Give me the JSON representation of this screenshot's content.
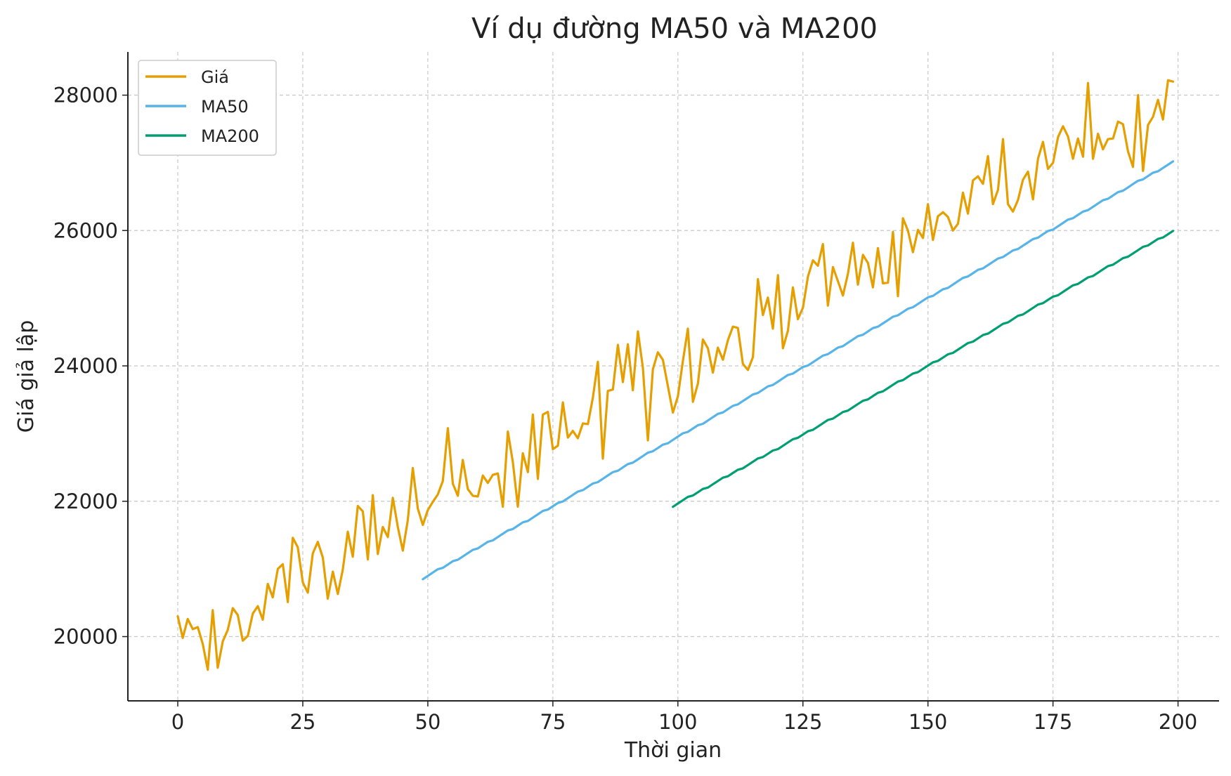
{
  "chart_data": {
    "type": "line",
    "title": "Ví dụ đường MA50 và MA200",
    "xlabel": "Thời gian",
    "ylabel": "Giá giả lập",
    "xlim": [
      -10,
      208
    ],
    "ylim": [
      19080,
      28680
    ],
    "xticks": [
      0,
      25,
      50,
      75,
      100,
      125,
      150,
      175,
      200
    ],
    "yticks": [
      20000,
      22000,
      24000,
      26000,
      28000
    ],
    "grid": true,
    "legend_position": "top-left",
    "series": [
      {
        "name": "Giá",
        "color": "#e69f00",
        "x_start": 0,
        "values": [
          20300,
          19980,
          20260,
          20110,
          20140,
          19890,
          19510,
          20390,
          19540,
          19930,
          20100,
          20420,
          20320,
          19940,
          20010,
          20340,
          20450,
          20250,
          20780,
          20580,
          21000,
          21070,
          20510,
          21460,
          21320,
          20800,
          20650,
          21230,
          21400,
          21170,
          20560,
          20960,
          20630,
          20990,
          21550,
          21180,
          21930,
          21850,
          21140,
          22090,
          21220,
          21620,
          21470,
          22050,
          21620,
          21270,
          21720,
          22490,
          21890,
          21650,
          21870,
          21990,
          22100,
          22300,
          23080,
          22260,
          22080,
          22610,
          22180,
          22080,
          22070,
          22380,
          22270,
          22390,
          22410,
          21920,
          23030,
          22580,
          21920,
          22710,
          22430,
          23280,
          22330,
          23280,
          23320,
          22770,
          22820,
          23460,
          22940,
          23040,
          22930,
          23150,
          23140,
          23530,
          24060,
          22630,
          23630,
          23650,
          24310,
          23760,
          24320,
          23640,
          24510,
          23970,
          22900,
          23950,
          24200,
          24090,
          23700,
          23310,
          23550,
          24070,
          24550,
          23470,
          23740,
          24390,
          24260,
          23900,
          24270,
          24090,
          24380,
          24580,
          24560,
          24030,
          23940,
          24130,
          25280,
          24750,
          25010,
          24550,
          25340,
          24260,
          24520,
          25160,
          24690,
          24860,
          25320,
          25560,
          25480,
          25800,
          24890,
          25460,
          25250,
          25040,
          25360,
          25820,
          25200,
          25640,
          25520,
          25160,
          25740,
          25220,
          25230,
          25980,
          25030,
          26180,
          26000,
          25680,
          26010,
          25890,
          26390,
          25860,
          26210,
          26270,
          26200,
          26000,
          26100,
          26560,
          26250,
          26740,
          26800,
          26690,
          27100,
          26390,
          26600,
          27350,
          26390,
          26280,
          26450,
          26750,
          26870,
          26460,
          27060,
          27310,
          26910,
          27000,
          27380,
          27540,
          27390,
          27060,
          27360,
          27090,
          28180,
          27060,
          27430,
          27200,
          27350,
          27360,
          27610,
          27570,
          27170,
          26940,
          28000,
          26880,
          27560,
          27680,
          27930,
          27640,
          28220,
          28200
        ]
      },
      {
        "name": "MA50",
        "color": "#56b4e9",
        "x_start": 49,
        "x_end": 199,
        "y_start": 20860,
        "y_end": 27010
      },
      {
        "name": "MA200",
        "color": "#009e73",
        "x_start": 99,
        "x_end": 199,
        "y_start": 21930,
        "y_end": 25990
      }
    ]
  }
}
